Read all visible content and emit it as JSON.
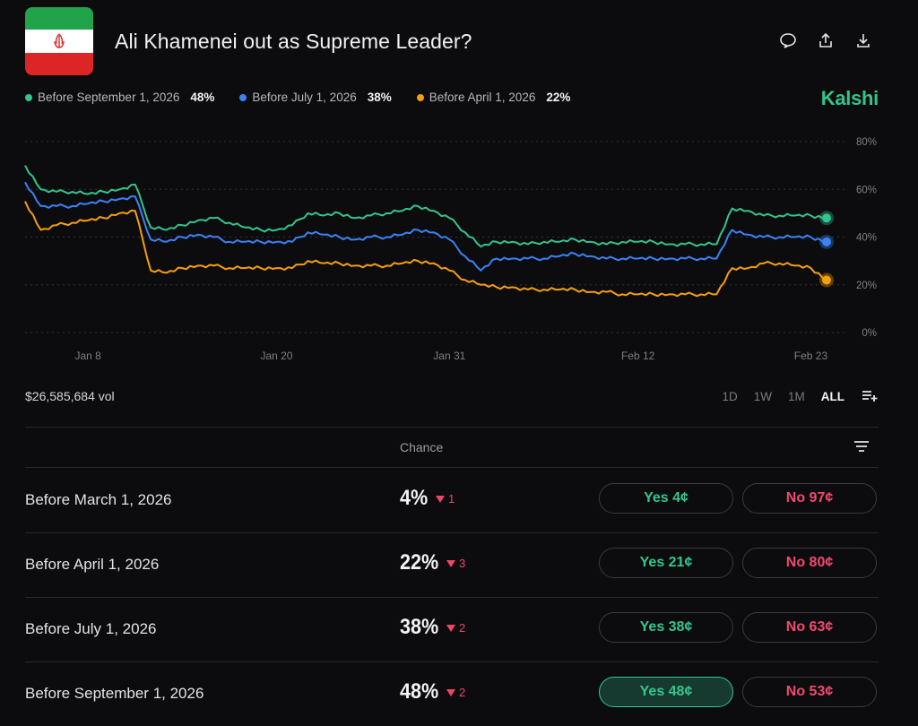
{
  "market": {
    "title": "Ali Khamenei out as Supreme Leader?",
    "brand": "Kalshi"
  },
  "header_icons": [
    "comment-icon",
    "share-icon",
    "download-icon"
  ],
  "legend": [
    {
      "label": "Before September 1, 2026",
      "value": "48%",
      "color": "#33c48d"
    },
    {
      "label": "Before July 1, 2026",
      "value": "38%",
      "color": "#3b82f6"
    },
    {
      "label": "Before April 1, 2026",
      "value": "22%",
      "color": "#f59e0b"
    }
  ],
  "chart_data": {
    "type": "line",
    "x_ticks": [
      "Jan 8",
      "Jan 20",
      "Jan 31",
      "Feb 12",
      "Feb 23"
    ],
    "y_ticks": [
      "80%",
      "60%",
      "40%",
      "20%",
      "0%"
    ],
    "ylim": [
      0,
      80
    ],
    "x": [
      "Jan 4",
      "Jan 5",
      "Jan 6",
      "Jan 7",
      "Jan 8",
      "Jan 9",
      "Jan 10",
      "Jan 11",
      "Jan 12",
      "Jan 13",
      "Jan 14",
      "Jan 15",
      "Jan 16",
      "Jan 17",
      "Jan 18",
      "Jan 19",
      "Jan 20",
      "Jan 21",
      "Jan 22",
      "Jan 23",
      "Jan 24",
      "Jan 25",
      "Jan 26",
      "Jan 27",
      "Jan 28",
      "Jan 29",
      "Jan 30",
      "Jan 31",
      "Feb 1",
      "Feb 2",
      "Feb 3",
      "Feb 4",
      "Feb 5",
      "Feb 6",
      "Feb 7",
      "Feb 8",
      "Feb 9",
      "Feb 10",
      "Feb 11",
      "Feb 12",
      "Feb 13",
      "Feb 14",
      "Feb 15",
      "Feb 16",
      "Feb 17",
      "Feb 18",
      "Feb 19",
      "Feb 20",
      "Feb 21",
      "Feb 22",
      "Feb 23",
      "Feb 24"
    ],
    "series": [
      {
        "name": "Before September 1, 2026",
        "color": "#33c48d",
        "values": [
          70,
          60,
          59,
          59,
          58,
          59,
          60,
          62,
          44,
          43,
          45,
          47,
          48,
          46,
          44,
          43,
          43,
          45,
          50,
          49,
          50,
          48,
          49,
          50,
          51,
          53,
          51,
          48,
          42,
          36,
          38,
          38,
          37,
          38,
          38,
          39,
          38,
          37,
          38,
          38,
          38,
          37,
          37,
          37,
          37,
          52,
          51,
          49,
          49,
          49,
          49,
          48
        ]
      },
      {
        "name": "Before July 1, 2026",
        "color": "#3b82f6",
        "values": [
          63,
          53,
          53,
          53,
          54,
          55,
          56,
          57,
          39,
          38,
          40,
          41,
          40,
          38,
          38,
          38,
          38,
          38,
          42,
          41,
          40,
          39,
          40,
          40,
          41,
          43,
          42,
          39,
          32,
          26,
          31,
          31,
          31,
          31,
          32,
          33,
          32,
          31,
          31,
          31,
          31,
          31,
          31,
          31,
          31,
          43,
          41,
          40,
          40,
          40,
          40,
          38
        ]
      },
      {
        "name": "Before April 1, 2026",
        "color": "#f59e0b",
        "values": [
          55,
          43,
          45,
          46,
          47,
          48,
          50,
          51,
          26,
          25,
          27,
          28,
          28,
          27,
          27,
          27,
          27,
          27,
          30,
          29,
          29,
          28,
          28,
          28,
          29,
          30,
          29,
          26,
          22,
          20,
          19,
          19,
          18,
          18,
          18,
          18,
          17,
          17,
          16,
          16,
          16,
          16,
          16,
          16,
          16,
          27,
          27,
          29,
          29,
          28,
          27,
          22
        ]
      }
    ]
  },
  "volume": "$26,585,684 vol",
  "ranges": [
    "1D",
    "1W",
    "1M",
    "ALL"
  ],
  "table": {
    "chance_header": "Chance",
    "rows": [
      {
        "label": "Before March 1, 2026",
        "chance": "4%",
        "change": "1",
        "yes": "Yes 4¢",
        "no": "No 97¢"
      },
      {
        "label": "Before April 1, 2026",
        "chance": "22%",
        "change": "3",
        "yes": "Yes 21¢",
        "no": "No 80¢"
      },
      {
        "label": "Before July 1, 2026",
        "chance": "38%",
        "change": "2",
        "yes": "Yes 38¢",
        "no": "No 63¢"
      },
      {
        "label": "Before September 1, 2026",
        "chance": "48%",
        "change": "2",
        "yes": "Yes 48¢",
        "no": "No 53¢"
      }
    ]
  }
}
